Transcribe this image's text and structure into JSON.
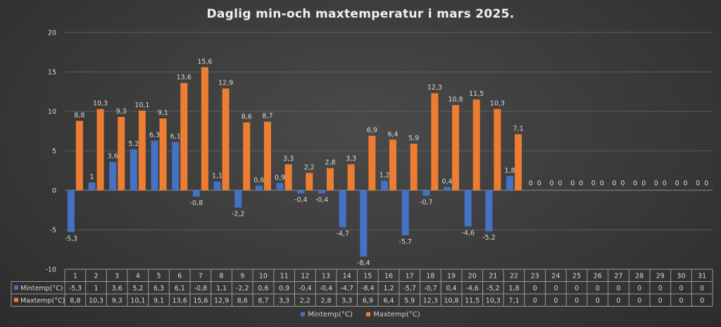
{
  "chart_data": {
    "type": "bar",
    "title": "Daglig min-och maxtemperatur i mars 2025.",
    "categories": [
      "1",
      "2",
      "3",
      "4",
      "5",
      "6",
      "7",
      "8",
      "9",
      "10",
      "11",
      "12",
      "13",
      "14",
      "15",
      "16",
      "17",
      "18",
      "19",
      "20",
      "21",
      "22",
      "23",
      "24",
      "25",
      "26",
      "27",
      "28",
      "29",
      "30",
      "31"
    ],
    "series": [
      {
        "name": "Mintemp(°C)",
        "color": "#4472C4",
        "values": [
          -5.3,
          1,
          3.6,
          5.2,
          6.3,
          6.1,
          -0.8,
          1.1,
          -2.2,
          0.6,
          0.9,
          -0.4,
          -0.4,
          -4.7,
          -8.4,
          1.2,
          -5.7,
          -0.7,
          0.4,
          -4.6,
          -5.2,
          1.8,
          0,
          0,
          0,
          0,
          0,
          0,
          0,
          0,
          0
        ],
        "labels": [
          "-5,3",
          "1",
          "3,6",
          "5,2",
          "6,3",
          "6,1",
          "-0,8",
          "1,1",
          "-2,2",
          "0,6",
          "0,9",
          "-0,4",
          "-0,4",
          "-4,7",
          "-8,4",
          "1,2",
          "-5,7",
          "-0,7",
          "0,4",
          "-4,6",
          "-5,2",
          "1,8",
          "0",
          "0",
          "0",
          "0",
          "0",
          "0",
          "0",
          "0",
          "0"
        ]
      },
      {
        "name": "Maxtemp(°C)",
        "color": "#ED7D31",
        "values": [
          8.8,
          10.3,
          9.3,
          10.1,
          9.1,
          13.6,
          15.6,
          12.9,
          8.6,
          8.7,
          3.3,
          2.2,
          2.8,
          3.3,
          6.9,
          6.4,
          5.9,
          12.3,
          10.8,
          11.5,
          10.3,
          7.1,
          0,
          0,
          0,
          0,
          0,
          0,
          0,
          0,
          0
        ],
        "labels": [
          "8,8",
          "10,3",
          "9,3",
          "10,1",
          "9,1",
          "13,6",
          "15,6",
          "12,9",
          "8,6",
          "8,7",
          "3,3",
          "2,2",
          "2,8",
          "3,3",
          "6,9",
          "6,4",
          "5,9",
          "12,3",
          "10,8",
          "11,5",
          "10,3",
          "7,1",
          "0",
          "0",
          "0",
          "0",
          "0",
          "0",
          "0",
          "0",
          "0"
        ]
      }
    ],
    "yticks": [
      "20",
      "15",
      "10",
      "5",
      "0",
      "-5",
      "-10"
    ],
    "ylim": [
      -10,
      20
    ],
    "grid": true,
    "data_table": true,
    "legend_position": "bottom"
  }
}
